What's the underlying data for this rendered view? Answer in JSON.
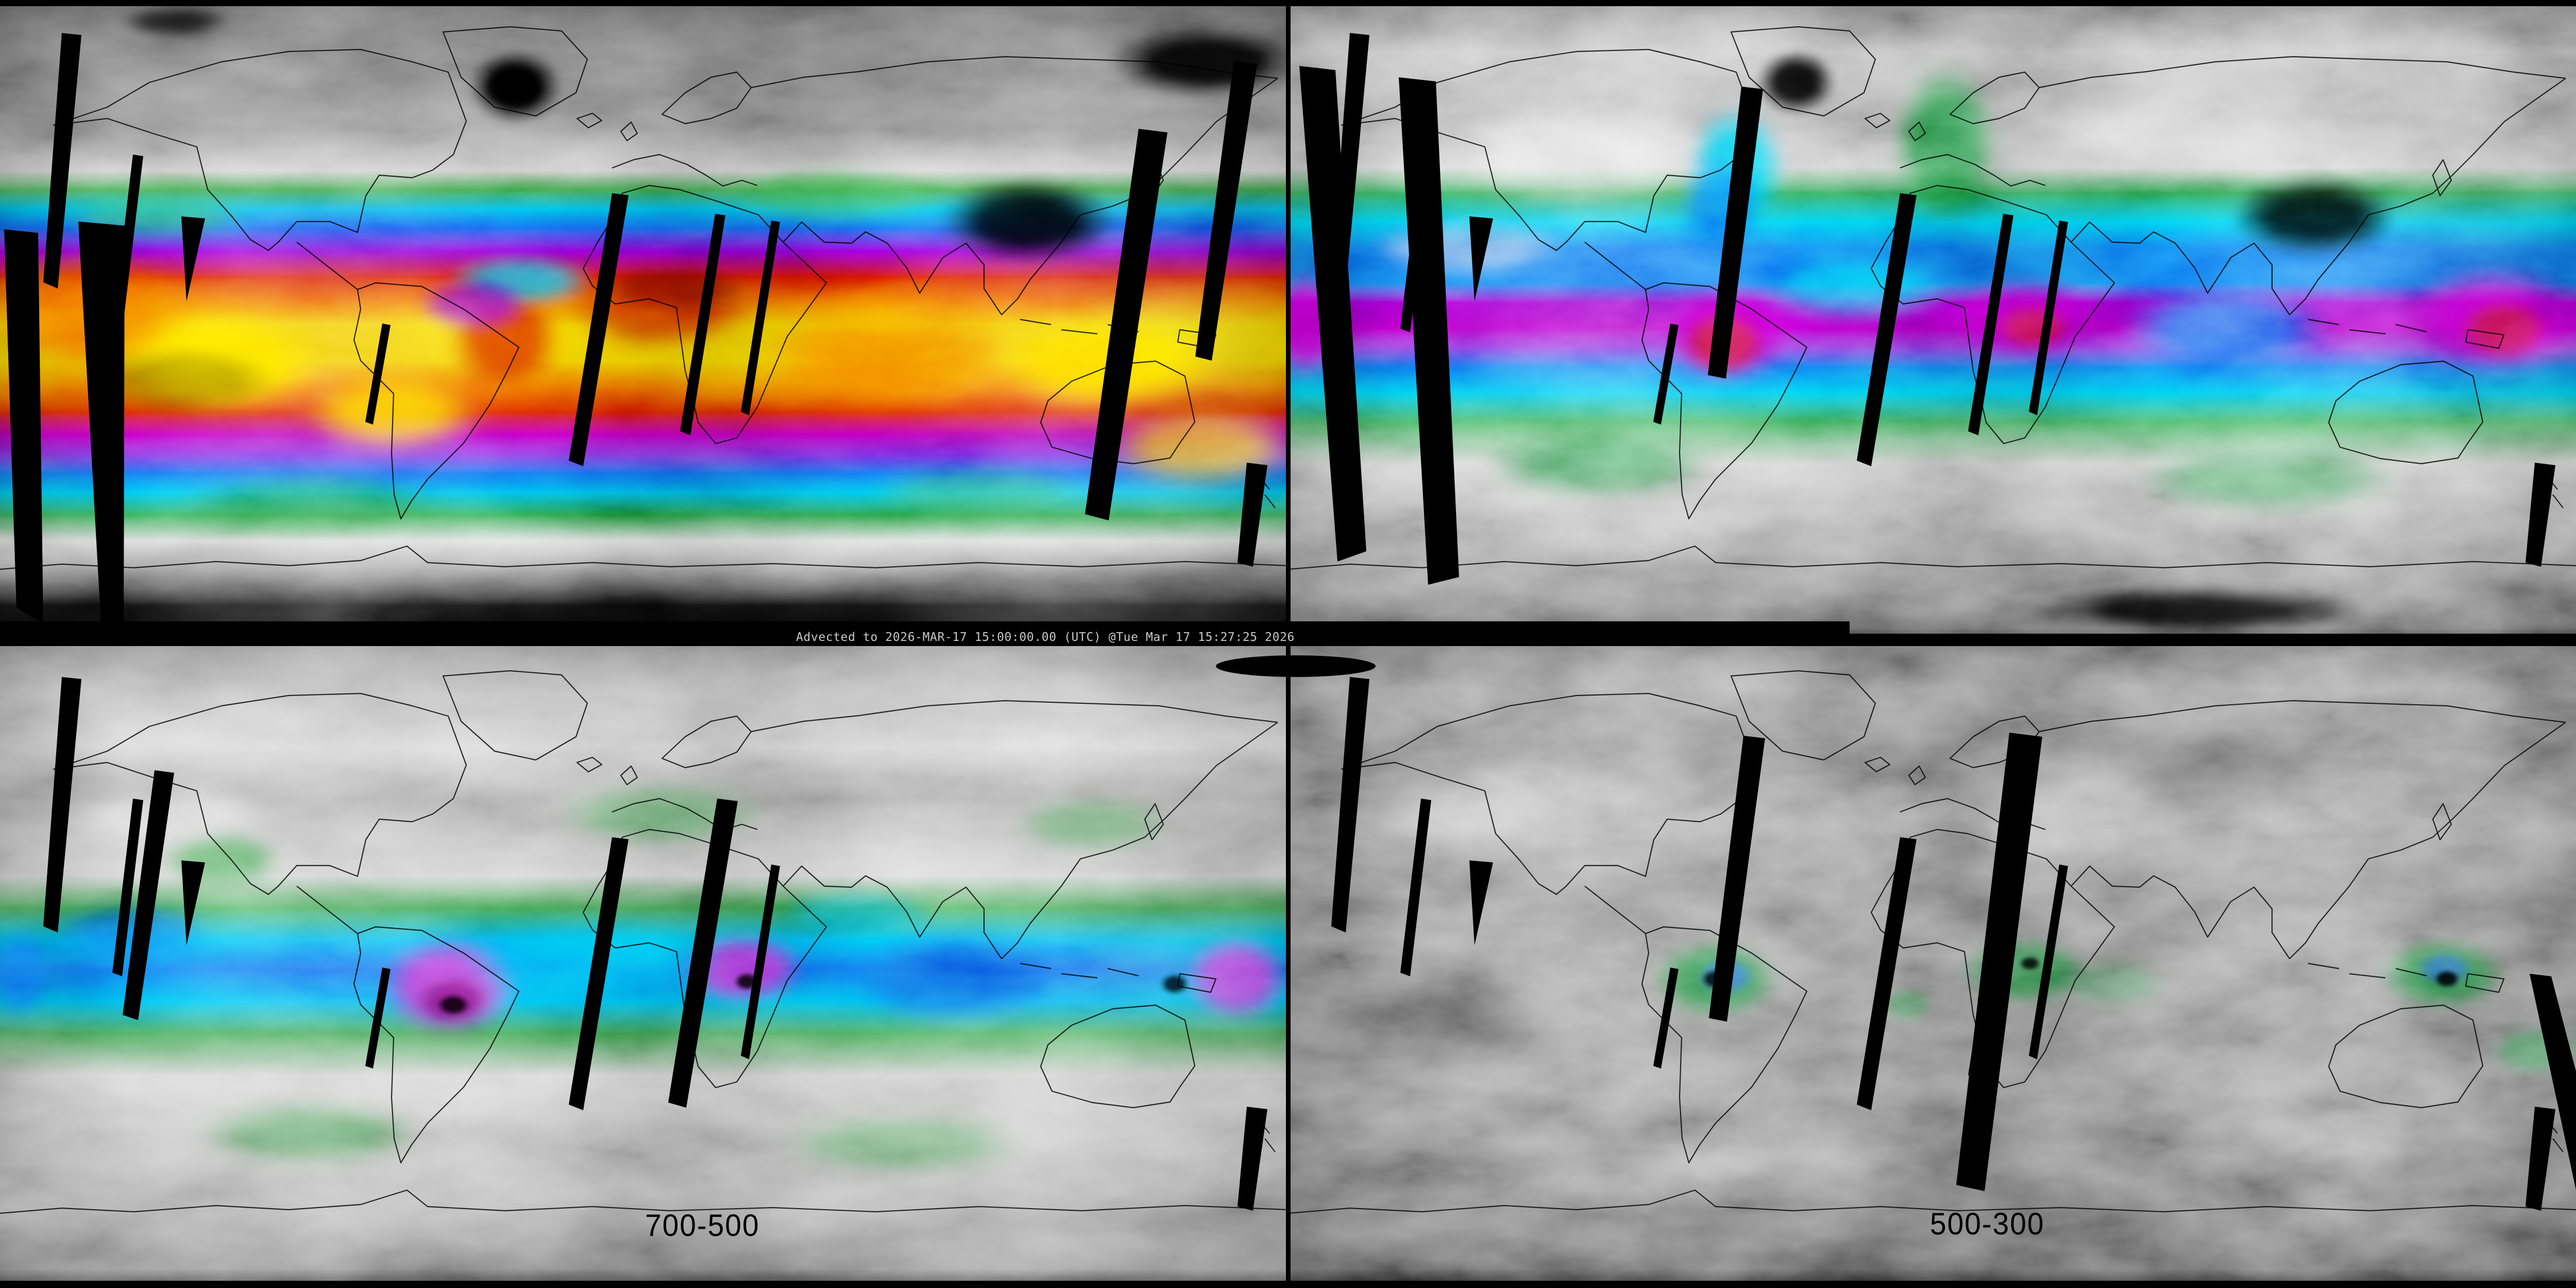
{
  "annotation_bar": {
    "text": "Advected to 2026-MAR-17 15:00:00.00 (UTC) @Tue Mar 17 15:27:25 2026"
  },
  "panels": {
    "bottom_left": {
      "label": "700-500"
    },
    "bottom_right": {
      "label": "500-300"
    }
  },
  "colors": {
    "background": "#000000",
    "annotation_text": "#c8c8c8",
    "panel_label_text": "#000000",
    "swath_gap": "#000000",
    "tpw_scale_low_to_high": [
      "#ffffff",
      "#9a9a9a",
      "#4a4a4a",
      "#1f9e46",
      "#00c8f0",
      "#0a6cf0",
      "#8a00d8",
      "#b400b4",
      "#d40f00",
      "#ef7300",
      "#f2cf00"
    ]
  }
}
